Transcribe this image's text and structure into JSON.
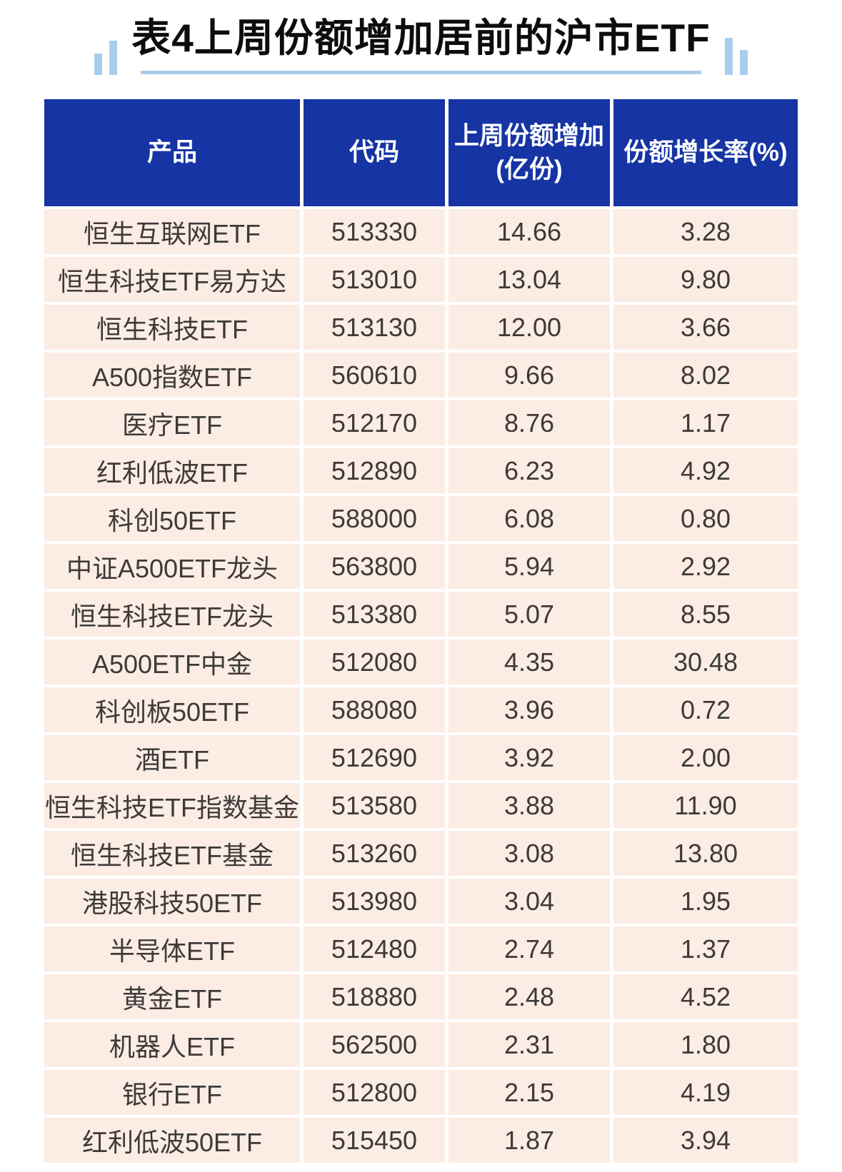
{
  "page": {
    "title": "表4上周份额增加居前的沪市ETF"
  },
  "table": {
    "headers": [
      "产品",
      "代码",
      "上周份额增加\n(亿份)",
      "份额增长率(%)"
    ],
    "rows": [
      [
        "恒生互联网ETF",
        "513330",
        "14.66",
        "3.28"
      ],
      [
        "恒生科技ETF易方达",
        "513010",
        "13.04",
        "9.80"
      ],
      [
        "恒生科技ETF",
        "513130",
        "12.00",
        "3.66"
      ],
      [
        "A500指数ETF",
        "560610",
        "9.66",
        "8.02"
      ],
      [
        "医疗ETF",
        "512170",
        "8.76",
        "1.17"
      ],
      [
        "红利低波ETF",
        "512890",
        "6.23",
        "4.92"
      ],
      [
        "科创50ETF",
        "588000",
        "6.08",
        "0.80"
      ],
      [
        "中证A500ETF龙头",
        "563800",
        "5.94",
        "2.92"
      ],
      [
        "恒生科技ETF龙头",
        "513380",
        "5.07",
        "8.55"
      ],
      [
        "A500ETF中金",
        "512080",
        "4.35",
        "30.48"
      ],
      [
        "科创板50ETF",
        "588080",
        "3.96",
        "0.72"
      ],
      [
        "酒ETF",
        "512690",
        "3.92",
        "2.00"
      ],
      [
        "恒生科技ETF指数基金",
        "513580",
        "3.88",
        "11.90"
      ],
      [
        "恒生科技ETF基金",
        "513260",
        "3.08",
        "13.80"
      ],
      [
        "港股科技50ETF",
        "513980",
        "3.04",
        "1.95"
      ],
      [
        "半导体ETF",
        "512480",
        "2.74",
        "1.37"
      ],
      [
        "黄金ETF",
        "518880",
        "2.48",
        "4.52"
      ],
      [
        "机器人ETF",
        "562500",
        "2.31",
        "1.80"
      ],
      [
        "银行ETF",
        "512800",
        "2.15",
        "4.19"
      ],
      [
        "红利低波50ETF",
        "515450",
        "1.87",
        "3.94"
      ]
    ]
  },
  "chart_data": {
    "type": "table",
    "title": "表4上周份额增加居前的沪市ETF",
    "columns": [
      "产品",
      "代码",
      "上周份额增加(亿份)",
      "份额增长率(%)"
    ],
    "rows": [
      {
        "product": "恒生互联网ETF",
        "code": "513330",
        "share_increase_yi": 14.66,
        "growth_rate_pct": 3.28
      },
      {
        "product": "恒生科技ETF易方达",
        "code": "513010",
        "share_increase_yi": 13.04,
        "growth_rate_pct": 9.8
      },
      {
        "product": "恒生科技ETF",
        "code": "513130",
        "share_increase_yi": 12.0,
        "growth_rate_pct": 3.66
      },
      {
        "product": "A500指数ETF",
        "code": "560610",
        "share_increase_yi": 9.66,
        "growth_rate_pct": 8.02
      },
      {
        "product": "医疗ETF",
        "code": "512170",
        "share_increase_yi": 8.76,
        "growth_rate_pct": 1.17
      },
      {
        "product": "红利低波ETF",
        "code": "512890",
        "share_increase_yi": 6.23,
        "growth_rate_pct": 4.92
      },
      {
        "product": "科创50ETF",
        "code": "588000",
        "share_increase_yi": 6.08,
        "growth_rate_pct": 0.8
      },
      {
        "product": "中证A500ETF龙头",
        "code": "563800",
        "share_increase_yi": 5.94,
        "growth_rate_pct": 2.92
      },
      {
        "product": "恒生科技ETF龙头",
        "code": "513380",
        "share_increase_yi": 5.07,
        "growth_rate_pct": 8.55
      },
      {
        "product": "A500ETF中金",
        "code": "512080",
        "share_increase_yi": 4.35,
        "growth_rate_pct": 30.48
      },
      {
        "product": "科创板50ETF",
        "code": "588080",
        "share_increase_yi": 3.96,
        "growth_rate_pct": 0.72
      },
      {
        "product": "酒ETF",
        "code": "512690",
        "share_increase_yi": 3.92,
        "growth_rate_pct": 2.0
      },
      {
        "product": "恒生科技ETF指数基金",
        "code": "513580",
        "share_increase_yi": 3.88,
        "growth_rate_pct": 11.9
      },
      {
        "product": "恒生科技ETF基金",
        "code": "513260",
        "share_increase_yi": 3.08,
        "growth_rate_pct": 13.8
      },
      {
        "product": "港股科技50ETF",
        "code": "513980",
        "share_increase_yi": 3.04,
        "growth_rate_pct": 1.95
      },
      {
        "product": "半导体ETF",
        "code": "512480",
        "share_increase_yi": 2.74,
        "growth_rate_pct": 1.37
      },
      {
        "product": "黄金ETF",
        "code": "518880",
        "share_increase_yi": 2.48,
        "growth_rate_pct": 4.52
      },
      {
        "product": "机器人ETF",
        "code": "562500",
        "share_increase_yi": 2.31,
        "growth_rate_pct": 1.8
      },
      {
        "product": "银行ETF",
        "code": "512800",
        "share_increase_yi": 2.15,
        "growth_rate_pct": 4.19
      },
      {
        "product": "红利低波50ETF",
        "code": "515450",
        "share_increase_yi": 1.87,
        "growth_rate_pct": 3.94
      }
    ],
    "layout": {
      "header_position": "top",
      "grid": true,
      "row_striping": false
    }
  },
  "colors": {
    "header_bg": "#1634a3",
    "header_text": "#ffffff",
    "row_bg": "#fbece4",
    "body_text": "#3d3a38",
    "accent_light_blue": "#a9cdec",
    "title_text": "#0d0d0d",
    "page_bg": "#ffffff"
  }
}
